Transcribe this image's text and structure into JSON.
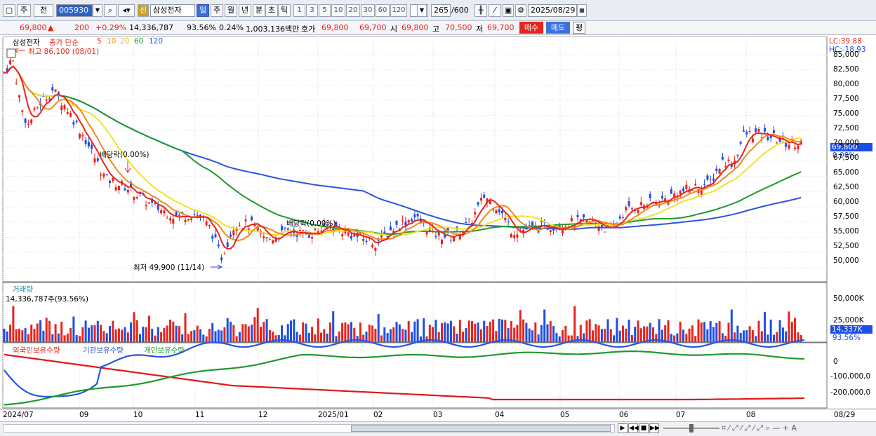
{
  "toolbar": {
    "period": "주",
    "prev": "전",
    "code": "005930",
    "credit": "신",
    "name": "삼성전자",
    "tf_day": "일",
    "tf_week": "주",
    "tf_month": "월",
    "tf_year": "년",
    "tf_min": "분",
    "tf_sec": "초",
    "tf_tick": "틱",
    "n1": "1",
    "n3": "3",
    "n5": "5",
    "n10": "10",
    "n20": "20",
    "n30": "30",
    "n60": "60",
    "n120": "120",
    "count": "265",
    "total": "/600",
    "date": "2025/08/29"
  },
  "quote": {
    "price": "69,800",
    "arrow": "▲",
    "change": "200",
    "pct": "+0.29%",
    "volume": "14,336,787",
    "vol_ratio": "93.56%",
    "turnover": "0.24%",
    "amount": "1,003,136백만",
    "hoga_label": "호가",
    "bid": "69,800",
    "ask": "69,700",
    "open_label": "시",
    "open": "69,800",
    "high_label": "고",
    "high": "70,500",
    "low_label": "저",
    "low": "69,700",
    "buy": "매수",
    "sell": "매도",
    "eval": "평"
  },
  "price_panel": {
    "legend_name": "삼성전자",
    "legend_ma": "종가 단순",
    "ma_periods": [
      "5",
      "10",
      "20",
      "60",
      "120"
    ],
    "max_label": "최고 86,100 (08/01)",
    "min_label": "최저 49,900 (11/14)",
    "div1": "배당락(0.00%)",
    "div2": "배당락(0.00%)",
    "lc": "LC:39.88",
    "hc": "HC:-18.93",
    "current": "69,800",
    "current_pct": "0.00%",
    "y_ticks": [
      "85,000",
      "82,500",
      "80,000",
      "77,500",
      "75,000",
      "72,500",
      "70,000",
      "67,500",
      "65,000",
      "62,500",
      "60,000",
      "57,500",
      "55,000",
      "52,500",
      "50,000"
    ]
  },
  "volume_panel": {
    "title": "거래량",
    "value": "14,336,787주(93.56%)",
    "y_ticks": [
      "50,000K",
      "25,000K"
    ],
    "current": "14,337K",
    "current_pct": "93.56%"
  },
  "holdings_panel": {
    "foreign": "외국인보유수량",
    "inst": "기관보유수량",
    "indiv": "개인보유수량",
    "y_ticks": [
      "0",
      "-100,000,0",
      "-200,000,0"
    ]
  },
  "x_axis": [
    "2024/07",
    "09",
    "10",
    "11",
    "12",
    "2025/01",
    "02",
    "03",
    "04",
    "05",
    "06",
    "07",
    "08",
    "08/29"
  ],
  "colors": {
    "up": "#e8241c",
    "down": "#1d4ee6",
    "ma5": "#e8241c",
    "ma10": "#f08a1c",
    "ma20": "#f2e22a",
    "ma60": "#1f9a2e",
    "ma120": "#2a55e0"
  }
}
